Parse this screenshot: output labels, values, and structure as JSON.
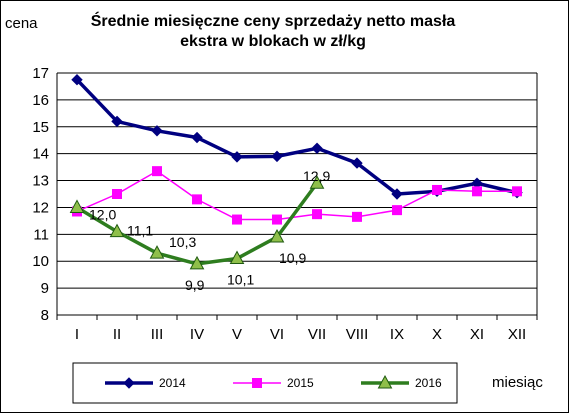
{
  "chart_data": {
    "type": "line",
    "title_lines": [
      "Średnie miesięczne ceny sprzedaży netto masła",
      "ekstra w blokach w zł/kg"
    ],
    "ylabel": "cena",
    "xlabel": "miesiąc",
    "categories": [
      "I",
      "II",
      "III",
      "IV",
      "V",
      "VI",
      "VII",
      "VIII",
      "IX",
      "X",
      "XI",
      "XII"
    ],
    "ylim": [
      8,
      17
    ],
    "yticks": [
      8,
      9,
      10,
      11,
      12,
      13,
      14,
      15,
      16,
      17
    ],
    "grid": true,
    "legend_position": "bottom",
    "series": [
      {
        "name": "2014",
        "color": "#000080",
        "marker": "diamond",
        "values": [
          16.75,
          15.2,
          14.85,
          14.6,
          13.88,
          13.9,
          14.2,
          13.65,
          12.5,
          12.6,
          12.9,
          12.55
        ]
      },
      {
        "name": "2015",
        "color": "#FF00FF",
        "marker": "square",
        "values": [
          11.85,
          12.5,
          13.35,
          12.3,
          11.55,
          11.55,
          11.75,
          11.65,
          11.9,
          12.65,
          12.6,
          12.6
        ]
      },
      {
        "name": "2016",
        "color": "#2E7D1F",
        "marker": "triangle",
        "values": [
          12.0,
          11.1,
          10.3,
          9.9,
          10.1,
          10.9,
          12.9,
          null,
          null,
          null,
          null,
          null
        ],
        "data_labels": [
          "12,0",
          "11,1",
          "10,3",
          "9,9",
          "10,1",
          "10,9",
          "12,9"
        ]
      }
    ]
  }
}
